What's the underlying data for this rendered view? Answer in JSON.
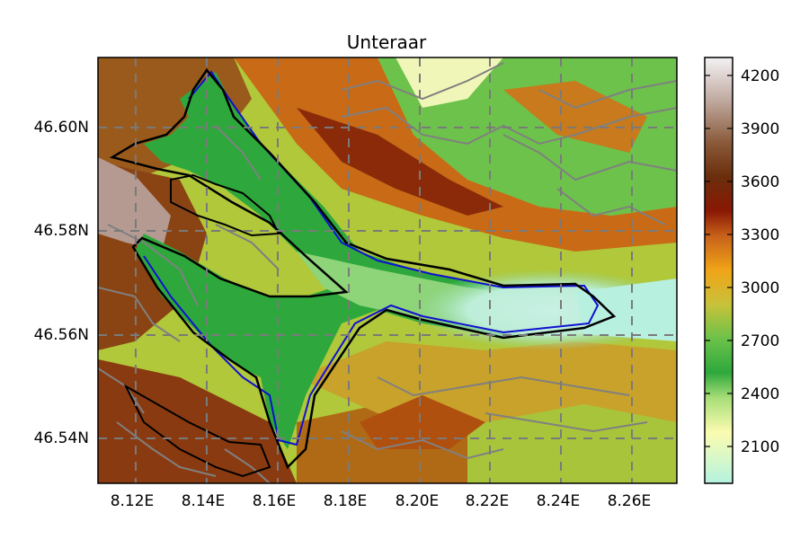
{
  "map": {
    "title": "Unteraar",
    "x_tick_labels": [
      "8.12E",
      "8.14E",
      "8.16E",
      "8.18E",
      "8.20E",
      "8.22E",
      "8.24E",
      "8.26E"
    ],
    "y_tick_labels": [
      "46.54N",
      "46.56N",
      "46.58N",
      "46.60N"
    ],
    "lon_range": [
      8.11,
      8.273
    ],
    "lat_range": [
      46.531,
      46.612
    ],
    "x_ticks": [
      8.12,
      8.14,
      8.16,
      8.18,
      8.2,
      8.22,
      8.24,
      8.26
    ],
    "y_ticks": [
      46.54,
      46.56,
      46.58,
      46.6
    ],
    "grid": "dashed gray graticule"
  },
  "colorbar": {
    "tick_labels": [
      "4200",
      "3900",
      "3600",
      "3300",
      "3000",
      "2700",
      "2400",
      "2100"
    ],
    "ticks": [
      4200,
      3900,
      3600,
      3300,
      3000,
      2700,
      2400,
      2100
    ],
    "range": [
      1920,
      4310
    ],
    "colormap": "terrain"
  },
  "colors": {
    "outline_black": "#000000",
    "outline_blue": "#1010d0",
    "contour_gray": "#808080",
    "glacier_green": "#3aa846",
    "high_brown": "#7a2e0a",
    "low_cyan": "#b8f0e0"
  }
}
